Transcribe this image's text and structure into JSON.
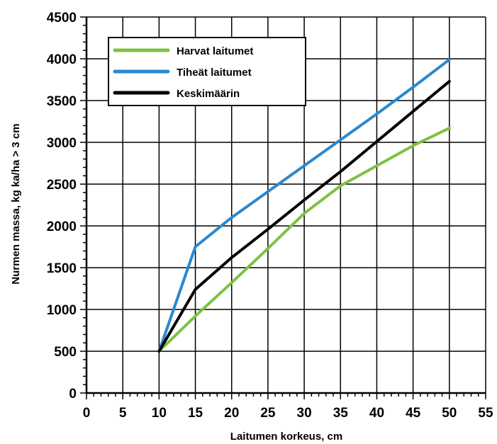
{
  "chart_data": {
    "type": "line",
    "xlabel": "Laitumen korkeus, cm",
    "ylabel": "Nurmen massa, kg ka/ha > 3 cm",
    "xlim": [
      0,
      55
    ],
    "ylim": [
      0,
      4500
    ],
    "xticks": [
      "0",
      "5",
      "10",
      "15",
      "20",
      "25",
      "30",
      "35",
      "40",
      "45",
      "50",
      "55"
    ],
    "yticks": [
      "0",
      "500",
      "1000",
      "1500",
      "2000",
      "2500",
      "3000",
      "3500",
      "4000",
      "4500"
    ],
    "grid": true,
    "legend_position": "top-left",
    "series": [
      {
        "name": "Harvat laitumet",
        "color": "#7cc242",
        "x": [
          10,
          15,
          20,
          25,
          30,
          35,
          40,
          45,
          50
        ],
        "y": [
          500,
          920,
          1320,
          1730,
          2150,
          2480,
          2720,
          2960,
          3170
        ]
      },
      {
        "name": "Tiheät laitumet",
        "color": "#2a88d0",
        "x": [
          10,
          15,
          20,
          25,
          30,
          35,
          40,
          45,
          50
        ],
        "y": [
          500,
          1750,
          2100,
          2410,
          2720,
          3030,
          3340,
          3660,
          3990
        ]
      },
      {
        "name": "Keskimäärin",
        "color": "#000000",
        "x": [
          10,
          15,
          20,
          25,
          30,
          35,
          40,
          45,
          50
        ],
        "y": [
          500,
          1240,
          1620,
          1960,
          2310,
          2650,
          3010,
          3370,
          3730
        ]
      }
    ]
  }
}
